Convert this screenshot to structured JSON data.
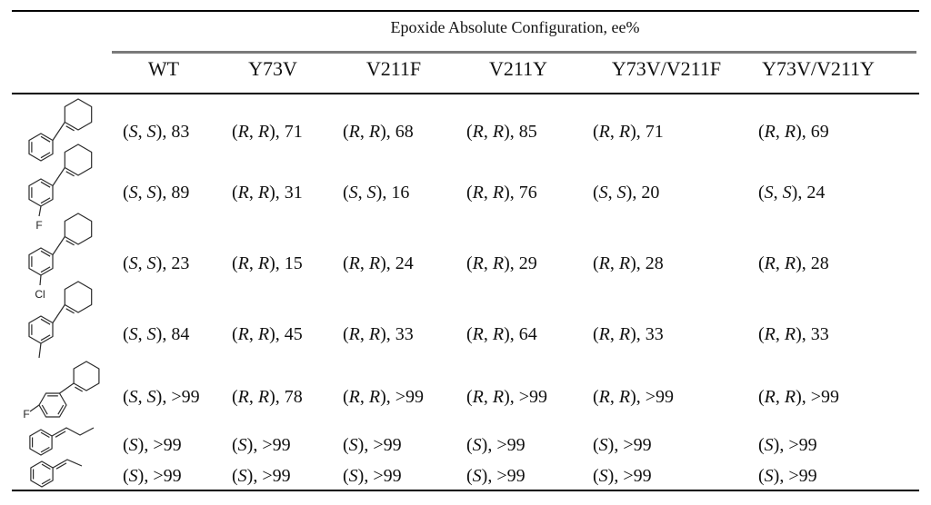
{
  "table": {
    "spanner": "Epoxide Absolute Configuration, ee%",
    "columns": [
      "WT",
      "Y73V",
      "V211F",
      "V211Y",
      "Y73V/V211F",
      "Y73V/V211Y"
    ],
    "rows": [
      {
        "structure": "1-phenylcyclohexene",
        "cells": [
          "(S, S), 83",
          "(R, R), 71",
          "(R, R), 68",
          "(R, R), 85",
          "(R, R), 71",
          "(R, R), 69"
        ]
      },
      {
        "structure": "1-(3-fluorophenyl)cyclohexene",
        "label": "F",
        "cells": [
          "(S, S), 89",
          "(R, R), 31",
          "(S, S), 16",
          "(R, R), 76",
          "(S, S), 20",
          "(S, S), 24"
        ]
      },
      {
        "structure": "1-(3-chlorophenyl)cyclohexene",
        "label": "Cl",
        "cells": [
          "(S, S), 23",
          "(R, R), 15",
          "(R, R), 24",
          "(R, R), 29",
          "(R, R), 28",
          "(R, R), 28"
        ]
      },
      {
        "structure": "1-(3-methylphenyl)cyclohexene",
        "cells": [
          "(S, S), 84",
          "(R, R), 45",
          "(R, R), 33",
          "(R, R), 64",
          "(R, R), 33",
          "(R, R), 33"
        ]
      },
      {
        "structure": "1-(4-fluorophenyl)cyclohexene",
        "label": "F",
        "cells": [
          "(S, S), >99",
          "(R, R), 78",
          "(R, R), >99",
          "(R, R), >99",
          "(R, R), >99",
          "(R, R), >99"
        ]
      },
      {
        "structure": "trans-1-phenyl-1-butene",
        "cells": [
          "(S), >99",
          "(S), >99",
          "(S), >99",
          "(S), >99",
          "(S), >99",
          "(S), >99"
        ]
      },
      {
        "structure": "trans-1-phenyl-1-propene",
        "cells": [
          "(S), >99",
          "(S), >99",
          "(S), >99",
          "(S), >99",
          "(S), >99",
          "(S), >99"
        ]
      }
    ],
    "colors": {
      "rule_black": "#000000",
      "rule_gray": "#7a7a7a",
      "text": "#111111"
    }
  }
}
